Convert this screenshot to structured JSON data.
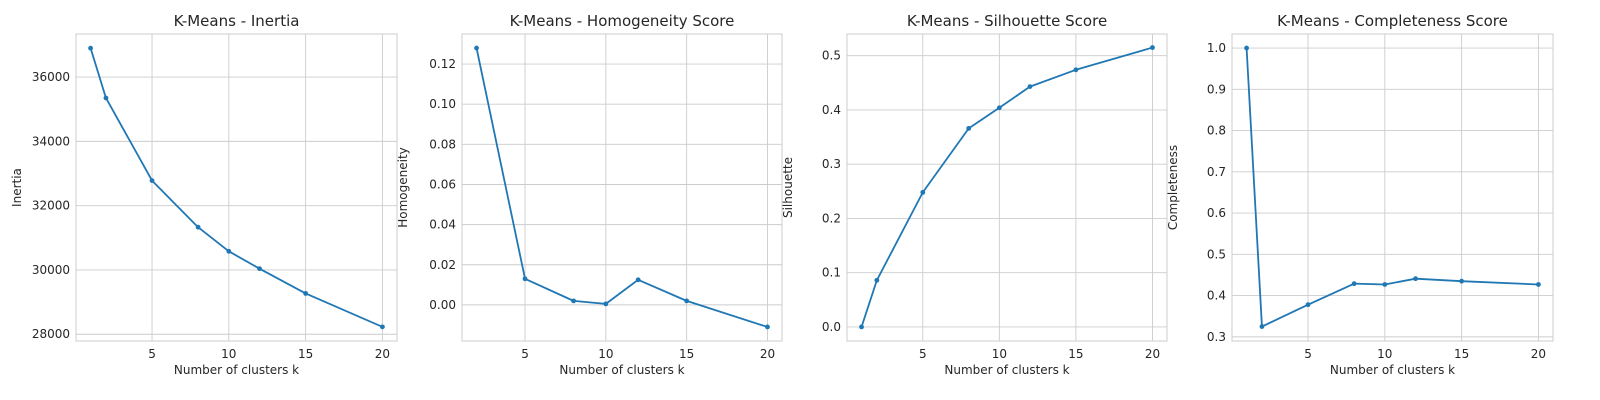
{
  "colors": {
    "line": "#1f77b4",
    "grid": "#cccccc",
    "frame": "#cccccc",
    "text": "#262626"
  },
  "chart_data": [
    {
      "type": "line",
      "title": "K-Means - Inertia",
      "xlabel": "Number of clusters k",
      "ylabel": "Inertia",
      "x": [
        1,
        2,
        5,
        8,
        10,
        12,
        15,
        20
      ],
      "values": [
        36900,
        35350,
        32780,
        31330,
        30580,
        30040,
        29270,
        28230
      ],
      "xlim": [
        0.05,
        20.95
      ],
      "ylim": [
        27790,
        37340
      ],
      "xticks": [
        5,
        10,
        15,
        20
      ],
      "yticks": [
        28000,
        30000,
        32000,
        34000,
        36000
      ],
      "grid": true
    },
    {
      "type": "line",
      "title": "K-Means - Homogeneity Score",
      "xlabel": "Number of clusters k",
      "ylabel": "Homogeneity",
      "x": [
        2,
        5,
        8,
        10,
        12,
        15,
        20
      ],
      "values": [
        0.128,
        0.013,
        0.002,
        0.0005,
        0.0125,
        0.002,
        -0.011
      ],
      "xlim": [
        1.1,
        20.9
      ],
      "ylim": [
        -0.018,
        0.135
      ],
      "xticks": [
        5,
        10,
        15,
        20
      ],
      "yticks": [
        0.0,
        0.02,
        0.04,
        0.06,
        0.08,
        0.1,
        0.12
      ],
      "ytick_labels": [
        "0.00",
        "0.02",
        "0.04",
        "0.06",
        "0.08",
        "0.10",
        "0.12"
      ],
      "grid": true
    },
    {
      "type": "line",
      "title": "K-Means - Silhouette Score",
      "xlabel": "Number of clusters k",
      "ylabel": "Silhouette",
      "x": [
        1,
        2,
        5,
        8,
        10,
        12,
        15,
        20
      ],
      "values": [
        0.0,
        0.086,
        0.248,
        0.366,
        0.404,
        0.443,
        0.474,
        0.515
      ],
      "xlim": [
        0.05,
        20.95
      ],
      "ylim": [
        -0.026,
        0.54
      ],
      "xticks": [
        5,
        10,
        15,
        20
      ],
      "yticks": [
        0.0,
        0.1,
        0.2,
        0.3,
        0.4,
        0.5
      ],
      "ytick_labels": [
        "0.0",
        "0.1",
        "0.2",
        "0.3",
        "0.4",
        "0.5"
      ],
      "grid": true
    },
    {
      "type": "line",
      "title": "K-Means - Completeness Score",
      "xlabel": "Number of clusters k",
      "ylabel": "Completeness",
      "x": [
        1,
        2,
        5,
        8,
        10,
        12,
        15,
        20
      ],
      "values": [
        1.0,
        0.325,
        0.378,
        0.429,
        0.427,
        0.441,
        0.435,
        0.427
      ],
      "xlim": [
        0.05,
        20.95
      ],
      "ylim": [
        0.29,
        1.034
      ],
      "xticks": [
        5,
        10,
        15,
        20
      ],
      "yticks": [
        0.3,
        0.4,
        0.5,
        0.6,
        0.7,
        0.8,
        0.9,
        1.0
      ],
      "ytick_labels": [
        "0.3",
        "0.4",
        "0.5",
        "0.6",
        "0.7",
        "0.8",
        "0.9",
        "1.0"
      ],
      "grid": true
    }
  ]
}
